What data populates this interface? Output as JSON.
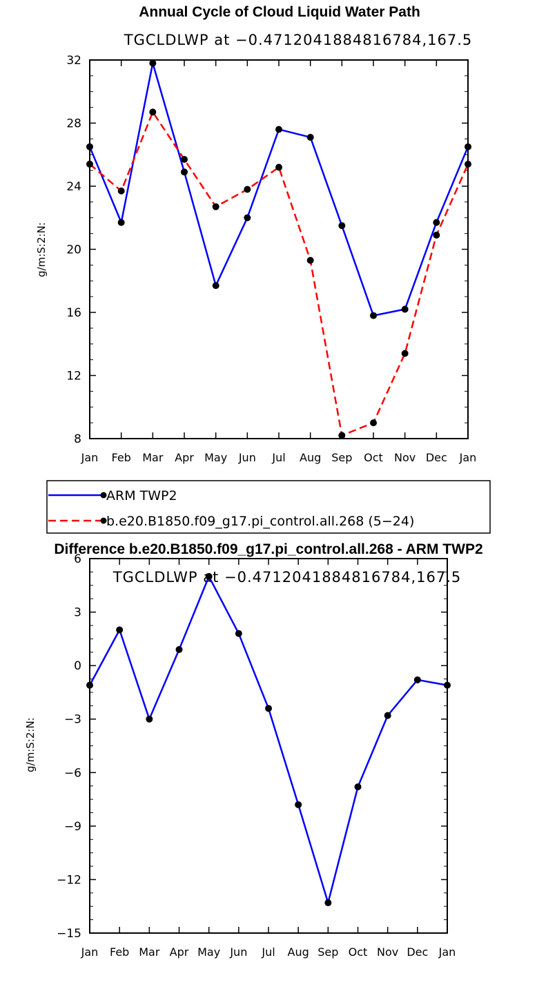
{
  "chart_data": [
    {
      "type": "line",
      "title": "Annual Cycle of Cloud Liquid Water Path",
      "subtitle": "TGCLDLWP  at  −0.4712041884816784,167.5",
      "ylabel": "g/m:S:2:N:",
      "xlabel": "",
      "categories": [
        "Jan",
        "Feb",
        "Mar",
        "Apr",
        "May",
        "Jun",
        "Jul",
        "Aug",
        "Sep",
        "Oct",
        "Nov",
        "Dec",
        "Jan"
      ],
      "ylim": [
        8,
        32
      ],
      "yticks": [
        8,
        12,
        16,
        20,
        24,
        28,
        32
      ],
      "ytick_labels": [
        "8",
        "12",
        "16",
        "20",
        "24",
        "28",
        "32"
      ],
      "series": [
        {
          "name": "ARM TWP2",
          "color": "#0000ff",
          "dash": "solid",
          "values": [
            26.5,
            21.7,
            31.8,
            24.9,
            17.7,
            22.0,
            27.6,
            27.1,
            21.5,
            15.8,
            16.2,
            21.7,
            26.5
          ]
        },
        {
          "name": "b.e20.B1850.f09_g17.pi_control.all.268 (5−24)",
          "color": "#ff0000",
          "dash": "dashed",
          "values": [
            25.4,
            23.7,
            28.7,
            25.7,
            22.7,
            23.8,
            25.2,
            19.3,
            8.2,
            9.0,
            13.4,
            20.9,
            25.4
          ]
        }
      ],
      "legend": [
        {
          "label": "ARM TWP2",
          "color": "#0000ff",
          "dash": "solid"
        },
        {
          "label": "b.e20.B1850.f09_g17.pi_control.all.268 (5−24)",
          "color": "#ff0000",
          "dash": "dashed"
        }
      ]
    },
    {
      "type": "line",
      "title": "Difference b.e20.B1850.f09_g17.pi_control.all.268 - ARM TWP2",
      "subtitle": "TGCLDLWP  at  −0.4712041884816784,167.5",
      "ylabel": "g/m:S:2:N:",
      "xlabel": "",
      "categories": [
        "Jan",
        "Feb",
        "Mar",
        "Apr",
        "May",
        "Jun",
        "Jul",
        "Aug",
        "Sep",
        "Oct",
        "Nov",
        "Dec",
        "Jan"
      ],
      "ylim": [
        -15,
        6
      ],
      "yticks": [
        -15,
        -12,
        -9,
        -6,
        -3,
        0,
        3,
        6
      ],
      "ytick_labels": [
        "−15",
        "−12",
        "−9",
        "−6",
        "−3",
        "0",
        "3",
        "6"
      ],
      "series": [
        {
          "name": "Difference",
          "color": "#0000ff",
          "dash": "solid",
          "values": [
            -1.1,
            2.0,
            -3.0,
            0.9,
            5.0,
            1.8,
            -2.4,
            -7.8,
            -13.3,
            -6.8,
            -2.8,
            -0.8,
            -1.1
          ]
        }
      ]
    }
  ]
}
